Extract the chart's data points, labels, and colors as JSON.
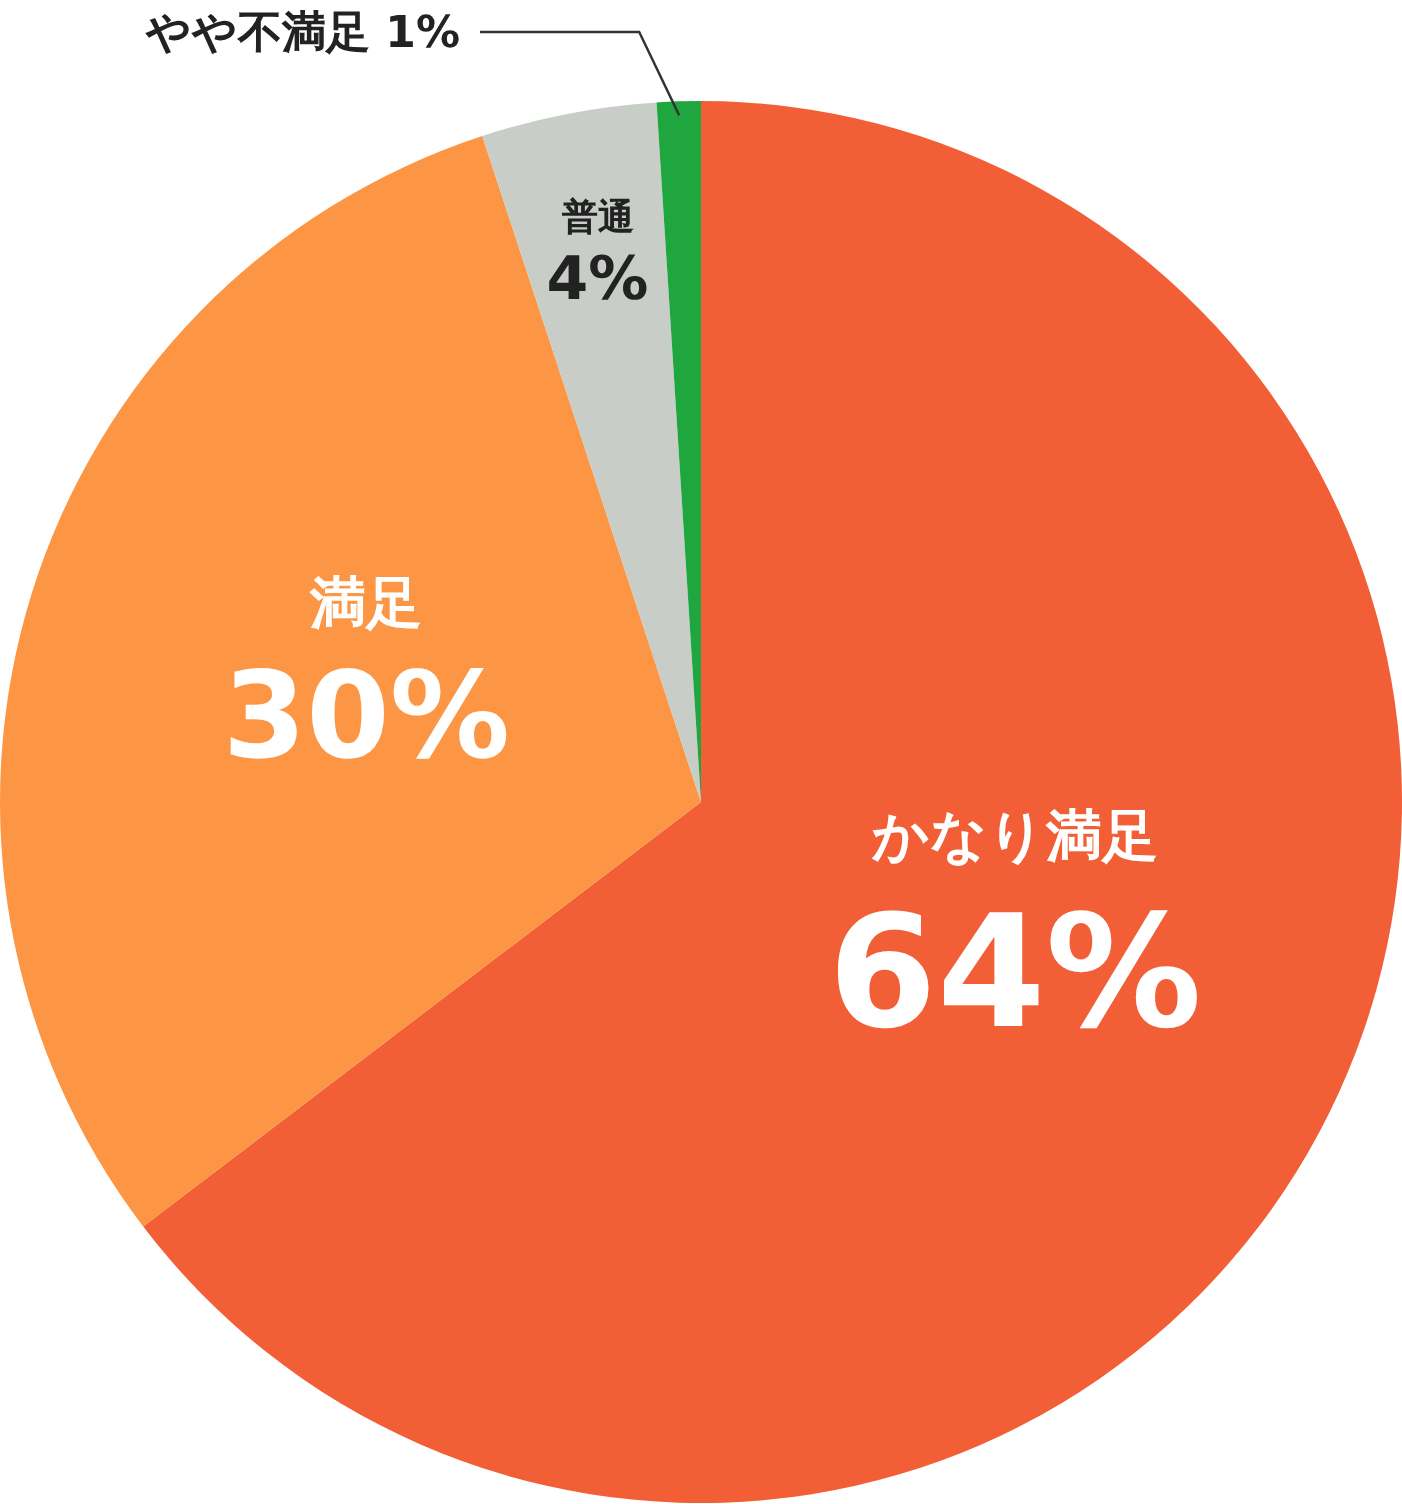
{
  "chart_data": {
    "type": "pie",
    "categories": [
      "かなり満足",
      "満足",
      "普通",
      "やや不満足"
    ],
    "values": [
      64,
      30,
      4,
      1
    ],
    "colors": [
      "#f25f36",
      "#fd9644",
      "#c9cdc8",
      "#1fa63f"
    ],
    "value_labels": [
      "64%",
      "30%",
      "4%",
      "1%"
    ],
    "legend": false
  }
}
